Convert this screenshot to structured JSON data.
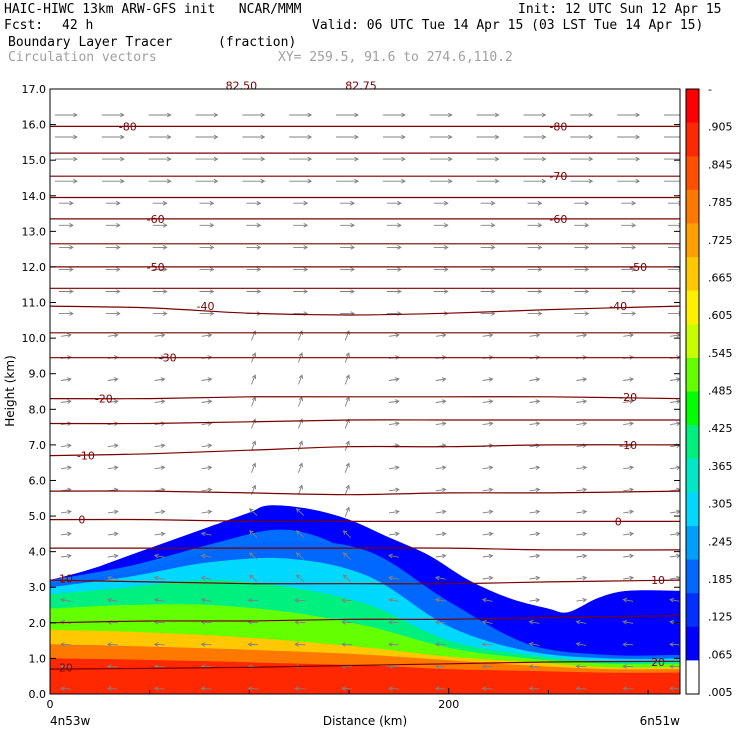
{
  "header": {
    "model_line": "HAIC-HIWC 13km ARW-GFS init   NCAR/MMM",
    "init_line": "Init: 12 UTC Sun 12 Apr 15",
    "fcst_label": "Fcst:",
    "fcst_value": "42 h",
    "valid_line": "Valid: 06 UTC Tue 14 Apr 15 (03 LST Tue 14 Apr 15)",
    "field_line": "Boundary Layer Tracer",
    "field_unit": "(fraction)",
    "vector_line": "Circulation vectors",
    "xy_line": "XY= 259.5, 91.6 to 274.6,110.2"
  },
  "chart_data": {
    "type": "heatmap",
    "xlabel": "Distance (km)",
    "ylabel": "Height (km)",
    "xlim": [
      0,
      316
    ],
    "ylim": [
      0,
      17
    ],
    "x_ticks": [
      {
        "value": 0,
        "label": "0"
      },
      {
        "value": 200,
        "label": "200"
      }
    ],
    "x_end_labels": [
      "4n53w",
      "6n51w"
    ],
    "y_ticks": [
      "0.0",
      "1.0",
      "2.0",
      "3.0",
      "4.0",
      "5.0",
      "6.0",
      "7.0",
      "8.0",
      "9.0",
      "10.0",
      "11.0",
      "12.0",
      "13.0",
      "14.0",
      "15.0",
      "16.0",
      "17.0"
    ],
    "colorbar": {
      "labels": [
        "-",
        ".905",
        ".845",
        ".785",
        ".725",
        ".665",
        ".605",
        ".545",
        ".485",
        ".425",
        ".365",
        ".305",
        ".245",
        ".185",
        ".125",
        ".065",
        ".005"
      ],
      "colors": [
        "#ff0000",
        "#ff2800",
        "#ff5000",
        "#ff7800",
        "#ffa000",
        "#ffc800",
        "#fff000",
        "#c8ff00",
        "#64ff00",
        "#00ff00",
        "#00f080",
        "#00e8c8",
        "#00d8ff",
        "#00a0ff",
        "#0068ff",
        "#0030ff",
        "#0000ff",
        "#ffffff"
      ]
    },
    "tracer_top_km": {
      "x": [
        0,
        20,
        40,
        60,
        80,
        100,
        110,
        130,
        150,
        170,
        190,
        210,
        230,
        250,
        260,
        275,
        290,
        316
      ],
      "y": [
        3.2,
        3.5,
        3.9,
        4.3,
        4.7,
        5.1,
        5.3,
        5.2,
        4.9,
        4.4,
        3.9,
        3.2,
        2.7,
        2.4,
        2.3,
        2.7,
        2.9,
        2.9
      ]
    },
    "tracer_bands": [
      {
        "value": 0.965,
        "top_km": [
          1.0,
          0.97,
          0.92,
          0.86,
          0.8,
          0.7,
          0.65,
          0.6,
          0.6
        ]
      },
      {
        "value": 0.845,
        "top_km": [
          1.4,
          1.35,
          1.28,
          1.2,
          1.1,
          0.95,
          0.8,
          0.7,
          0.7
        ]
      },
      {
        "value": 0.725,
        "top_km": [
          1.8,
          1.75,
          1.65,
          1.5,
          1.3,
          1.05,
          0.9,
          0.75,
          0.75
        ]
      },
      {
        "value": 0.545,
        "top_km": [
          2.4,
          2.5,
          2.5,
          2.3,
          1.9,
          1.3,
          1.0,
          0.85,
          0.85
        ]
      },
      {
        "value": 0.425,
        "top_km": [
          2.8,
          3.0,
          3.2,
          3.0,
          2.5,
          1.5,
          1.1,
          0.9,
          0.9
        ]
      },
      {
        "value": 0.305,
        "top_km": [
          3.0,
          3.3,
          3.7,
          3.8,
          3.3,
          1.9,
          1.2,
          1.0,
          1.0
        ]
      },
      {
        "value": 0.185,
        "top_km": [
          3.1,
          3.4,
          4.0,
          4.3,
          4.0,
          2.6,
          1.4,
          1.1,
          1.1
        ]
      }
    ],
    "band_x_km": [
      0,
      40,
      80,
      120,
      160,
      200,
      240,
      280,
      316
    ],
    "temperature_contours": [
      {
        "label": "20",
        "y": [
          0.7,
          0.72,
          0.75,
          0.8,
          0.85,
          0.9,
          0.92
        ]
      },
      {
        "label": "10",
        "y": [
          3.2,
          3.15,
          3.1,
          3.1,
          3.1,
          3.15,
          3.2
        ]
      },
      {
        "label": "",
        "y": [
          2.0,
          2.05,
          2.05,
          2.1,
          2.1,
          2.15,
          2.2
        ]
      },
      {
        "label": "",
        "y": [
          4.1,
          4.1,
          4.1,
          4.1,
          4.1,
          4.05,
          4.05
        ]
      },
      {
        "label": "0",
        "y": [
          4.9,
          4.9,
          4.85,
          4.85,
          4.85,
          4.85,
          4.85
        ]
      },
      {
        "label": "",
        "y": [
          5.7,
          5.7,
          5.65,
          5.6,
          5.65,
          5.65,
          5.7
        ]
      },
      {
        "label": "-10",
        "y": [
          6.7,
          6.75,
          6.85,
          6.95,
          6.95,
          7.0,
          7.0
        ]
      },
      {
        "label": "",
        "y": [
          7.6,
          7.6,
          7.65,
          7.7,
          7.7,
          7.7,
          7.7
        ]
      },
      {
        "label": "-20",
        "y": [
          8.3,
          8.3,
          8.35,
          8.35,
          8.35,
          8.35,
          8.3
        ]
      },
      {
        "label": "-30",
        "y": [
          9.45,
          9.45,
          9.45,
          9.45,
          9.45,
          9.45,
          9.45
        ]
      },
      {
        "label": "",
        "y": [
          10.15,
          10.15,
          10.15,
          10.15,
          10.15,
          10.15,
          10.15
        ]
      },
      {
        "label": "-40",
        "y": [
          10.9,
          10.85,
          10.7,
          10.65,
          10.7,
          10.8,
          10.9
        ]
      },
      {
        "label": "",
        "y": [
          11.4,
          11.4,
          11.4,
          11.4,
          11.4,
          11.4,
          11.4
        ]
      },
      {
        "label": "-50",
        "y": [
          12.0,
          12.0,
          12.0,
          12.0,
          12.0,
          12.0,
          12.0
        ]
      },
      {
        "label": "",
        "y": [
          12.65,
          12.65,
          12.65,
          12.65,
          12.65,
          12.65,
          12.65
        ]
      },
      {
        "label": "-60",
        "y": [
          13.35,
          13.35,
          13.35,
          13.35,
          13.35,
          13.35,
          13.35
        ]
      },
      {
        "label": "",
        "y": [
          13.95,
          13.95,
          13.95,
          13.95,
          13.95,
          13.95,
          13.95
        ]
      },
      {
        "label": "-70",
        "y": [
          14.55,
          14.55,
          14.55,
          14.55,
          14.55,
          14.55,
          14.55
        ]
      },
      {
        "label": "",
        "y": [
          15.2,
          15.2,
          15.2,
          15.2,
          15.2,
          15.2,
          15.2
        ]
      },
      {
        "label": "-80",
        "y": [
          15.95,
          15.95,
          15.95,
          15.95,
          15.95,
          15.95,
          15.95
        ]
      }
    ],
    "contour_x_km": [
      0,
      50,
      100,
      150,
      200,
      250,
      316
    ],
    "contour_labels": [
      {
        "text": "20",
        "x": 8,
        "y": 0.75
      },
      {
        "text": "20",
        "x": 305,
        "y": 0.9
      },
      {
        "text": "10",
        "x": 8,
        "y": 3.25
      },
      {
        "text": "10",
        "x": 305,
        "y": 3.2
      },
      {
        "text": "0",
        "x": 16,
        "y": 4.9
      },
      {
        "text": "0",
        "x": 285,
        "y": 4.85
      },
      {
        "text": "-10",
        "x": 18,
        "y": 6.7
      },
      {
        "text": "-10",
        "x": 290,
        "y": 7.0
      },
      {
        "text": "-20",
        "x": 27,
        "y": 8.3
      },
      {
        "text": "-20",
        "x": 290,
        "y": 8.35
      },
      {
        "text": "-30",
        "x": 59,
        "y": 9.45
      },
      {
        "text": "-40",
        "x": 78,
        "y": 10.9
      },
      {
        "text": "-40",
        "x": 285,
        "y": 10.9
      },
      {
        "text": "-50",
        "x": 53,
        "y": 12.0
      },
      {
        "text": "-50",
        "x": 295,
        "y": 12.0
      },
      {
        "text": "-60",
        "x": 53,
        "y": 13.35
      },
      {
        "text": "-60",
        "x": 255,
        "y": 13.35
      },
      {
        "text": "-70",
        "x": 255,
        "y": 14.55
      },
      {
        "text": "-80",
        "x": 39,
        "y": 15.95
      },
      {
        "text": "-80",
        "x": 255,
        "y": 15.95
      },
      {
        "text": "82.50",
        "x": 96,
        "y": 17.1
      },
      {
        "text": "82.75",
        "x": 156,
        "y": 17.1
      }
    ],
    "vectors": {
      "upper_wind": "west-to-east",
      "boundary_layer_wind": "east-to-west",
      "ascent_near_x_km": [
        100,
        150
      ]
    }
  },
  "colors": {
    "contour": "#7a0000",
    "vector": "#808080",
    "frame": "#000000"
  }
}
